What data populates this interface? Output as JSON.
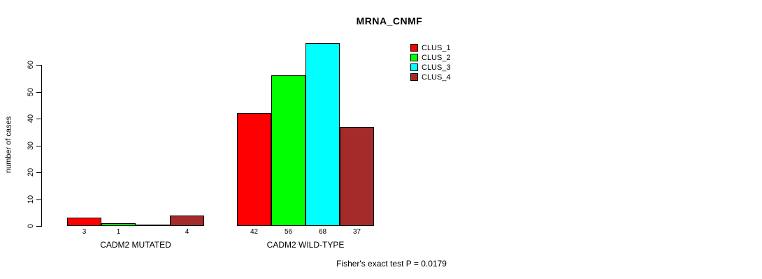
{
  "window": {
    "background_color": "#ffffff"
  },
  "chart_data": {
    "type": "bar",
    "title": "MRNA_CNMF",
    "ylabel": "number of cases",
    "xlabel": "",
    "categories": [
      "CADM2 MUTATED",
      "CADM2 WILD-TYPE"
    ],
    "series": [
      {
        "name": "CLUS_1",
        "color": "#ff0000",
        "values": [
          3,
          42
        ]
      },
      {
        "name": "CLUS_2",
        "color": "#00ff00",
        "values": [
          1,
          56
        ]
      },
      {
        "name": "CLUS_3",
        "color": "#00ffff",
        "values": [
          0,
          68
        ]
      },
      {
        "name": "CLUS_4",
        "color": "#a52a2a",
        "values": [
          4,
          37
        ]
      }
    ],
    "bar_value_labels": [
      [
        "3",
        "1",
        "",
        "4"
      ],
      [
        "42",
        "56",
        "68",
        "37"
      ]
    ],
    "yticks": [
      0,
      10,
      20,
      30,
      40,
      50,
      60
    ],
    "ylim": [
      0,
      68.5
    ],
    "grid": false,
    "legend_position": "top-right",
    "annotation": "Fisher's exact test P = 0.0179"
  }
}
